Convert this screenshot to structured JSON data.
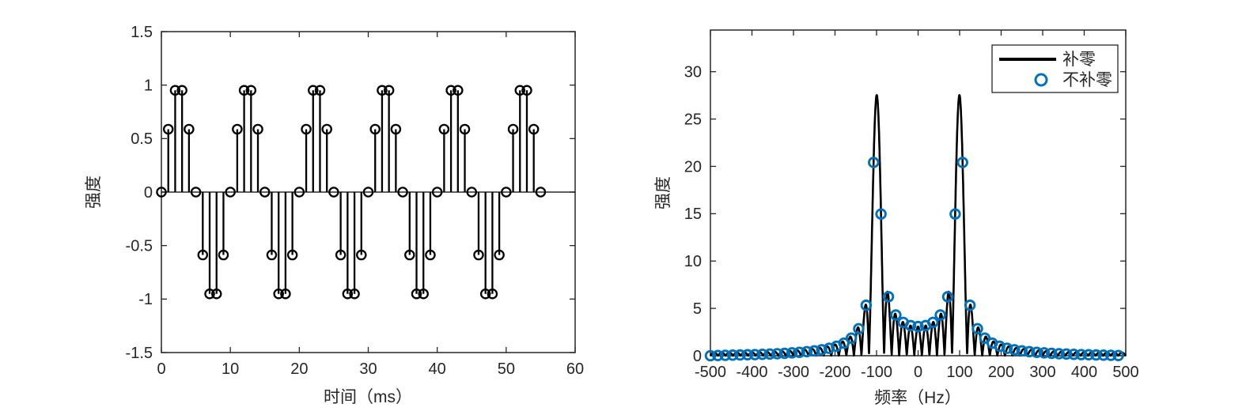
{
  "figure": {
    "background": "#ffffff"
  },
  "chart_data": [
    {
      "type": "stem",
      "title": "",
      "xlabel": "时间（ms）",
      "ylabel": "强度",
      "xlim": [
        0,
        60
      ],
      "ylim": [
        -1.5,
        1.5
      ],
      "xticks": [
        0,
        10,
        20,
        30,
        40,
        50,
        60
      ],
      "xtick_labels": [
        "0",
        "10",
        "20",
        "30",
        "40",
        "50",
        "60"
      ],
      "yticks": [
        1.5,
        1,
        0.5,
        0,
        -0.5,
        -1,
        -1.5
      ],
      "ytick_labels": [
        "1.5",
        "1",
        "0.5",
        "0",
        "-0.5",
        "-1",
        "-1.5"
      ],
      "grid": false,
      "line_color": "#000000",
      "marker": "open-circle",
      "x_ms": [
        0,
        1,
        2,
        3,
        4,
        5,
        6,
        7,
        8,
        9,
        10,
        11,
        12,
        13,
        14,
        15,
        16,
        17,
        18,
        19,
        20,
        21,
        22,
        23,
        24,
        25,
        26,
        27,
        28,
        29,
        30,
        31,
        32,
        33,
        34,
        35,
        36,
        37,
        38,
        39,
        40,
        41,
        42,
        43,
        44,
        45,
        46,
        47,
        48,
        49,
        50,
        51,
        52,
        53,
        54,
        55
      ],
      "values": [
        0,
        0.5878,
        0.9511,
        0.9511,
        0.5878,
        0,
        -0.5878,
        -0.9511,
        -0.9511,
        -0.5878,
        0,
        0.5878,
        0.9511,
        0.9511,
        0.5878,
        0,
        -0.5878,
        -0.9511,
        -0.9511,
        -0.5878,
        0,
        0.5878,
        0.9511,
        0.9511,
        0.5878,
        0,
        -0.5878,
        -0.9511,
        -0.9511,
        -0.5878,
        0,
        0.5878,
        0.9511,
        0.9511,
        0.5878,
        0,
        -0.5878,
        -0.9511,
        -0.9511,
        -0.5878,
        0,
        0.5878,
        0.9511,
        0.9511,
        0.5878,
        0,
        -0.5878,
        -0.9511,
        -0.9511,
        -0.5878,
        0,
        0.5878,
        0.9511,
        0.9511,
        0.5878,
        0
      ]
    },
    {
      "type": "line+scatter",
      "title": "",
      "xlabel": "频率（Hz）",
      "ylabel": "强度",
      "xlim": [
        -500,
        500
      ],
      "ylim": [
        0,
        34.4
      ],
      "xticks": [
        -500,
        -400,
        -300,
        -200,
        -100,
        0,
        100,
        200,
        300,
        400,
        500
      ],
      "xtick_labels": [
        "-500",
        "-400",
        "-300",
        "-200",
        "-100",
        "0",
        "100",
        "200",
        "300",
        "400",
        "500"
      ],
      "yticks": [
        0,
        5,
        10,
        15,
        20,
        25,
        30
      ],
      "ytick_labels": [
        "0",
        "5",
        "10",
        "15",
        "20",
        "25",
        "30"
      ],
      "grid": false,
      "legend_position": "top-right",
      "legend": [
        {
          "label": "补零",
          "swatch": "line",
          "color": "#000000"
        },
        {
          "label": "不补零",
          "swatch": "circle",
          "color": "#0072BD"
        }
      ],
      "series": [
        {
          "name": "补零",
          "style": "line",
          "color": "#000000",
          "source": "dtft_magnitude_of_chart0_values",
          "sample_rate_hz": 1000,
          "peak_value": 27.5,
          "peak_freqs_hz": [
            -100,
            100
          ]
        },
        {
          "name": "不补零",
          "style": "scatter",
          "color": "#0072BD",
          "x": [
            -500.0,
            -482.1,
            -464.3,
            -446.4,
            -428.6,
            -410.7,
            -392.9,
            -375.0,
            -357.1,
            -339.3,
            -321.4,
            -303.6,
            -285.7,
            -267.9,
            -250.0,
            -232.1,
            -214.3,
            -196.4,
            -178.6,
            -160.7,
            -142.9,
            -125.0,
            -107.1,
            -89.3,
            -71.4,
            -53.6,
            -35.7,
            -17.9,
            0.0,
            17.9,
            35.7,
            53.6,
            71.4,
            89.3,
            107.1,
            125.0,
            142.9,
            160.7,
            178.6,
            196.4,
            214.3,
            232.1,
            250.0,
            267.9,
            285.7,
            303.6,
            321.4,
            339.3,
            357.1,
            375.0,
            392.9,
            410.7,
            428.6,
            446.4,
            464.3,
            482.1
          ],
          "y": [
            0.0,
            0.02,
            0.04,
            0.06,
            0.08,
            0.1,
            0.12,
            0.15,
            0.18,
            0.21,
            0.25,
            0.3,
            0.36,
            0.43,
            0.51,
            0.63,
            0.78,
            1.0,
            1.33,
            1.86,
            2.85,
            5.33,
            20.41,
            14.97,
            6.23,
            4.3,
            3.52,
            3.18,
            3.08,
            3.18,
            3.52,
            4.3,
            6.23,
            14.97,
            20.41,
            5.33,
            2.85,
            1.86,
            1.33,
            1.0,
            0.78,
            0.63,
            0.51,
            0.43,
            0.36,
            0.3,
            0.25,
            0.21,
            0.18,
            0.15,
            0.12,
            0.1,
            0.08,
            0.06,
            0.04,
            0.02
          ]
        }
      ]
    }
  ]
}
